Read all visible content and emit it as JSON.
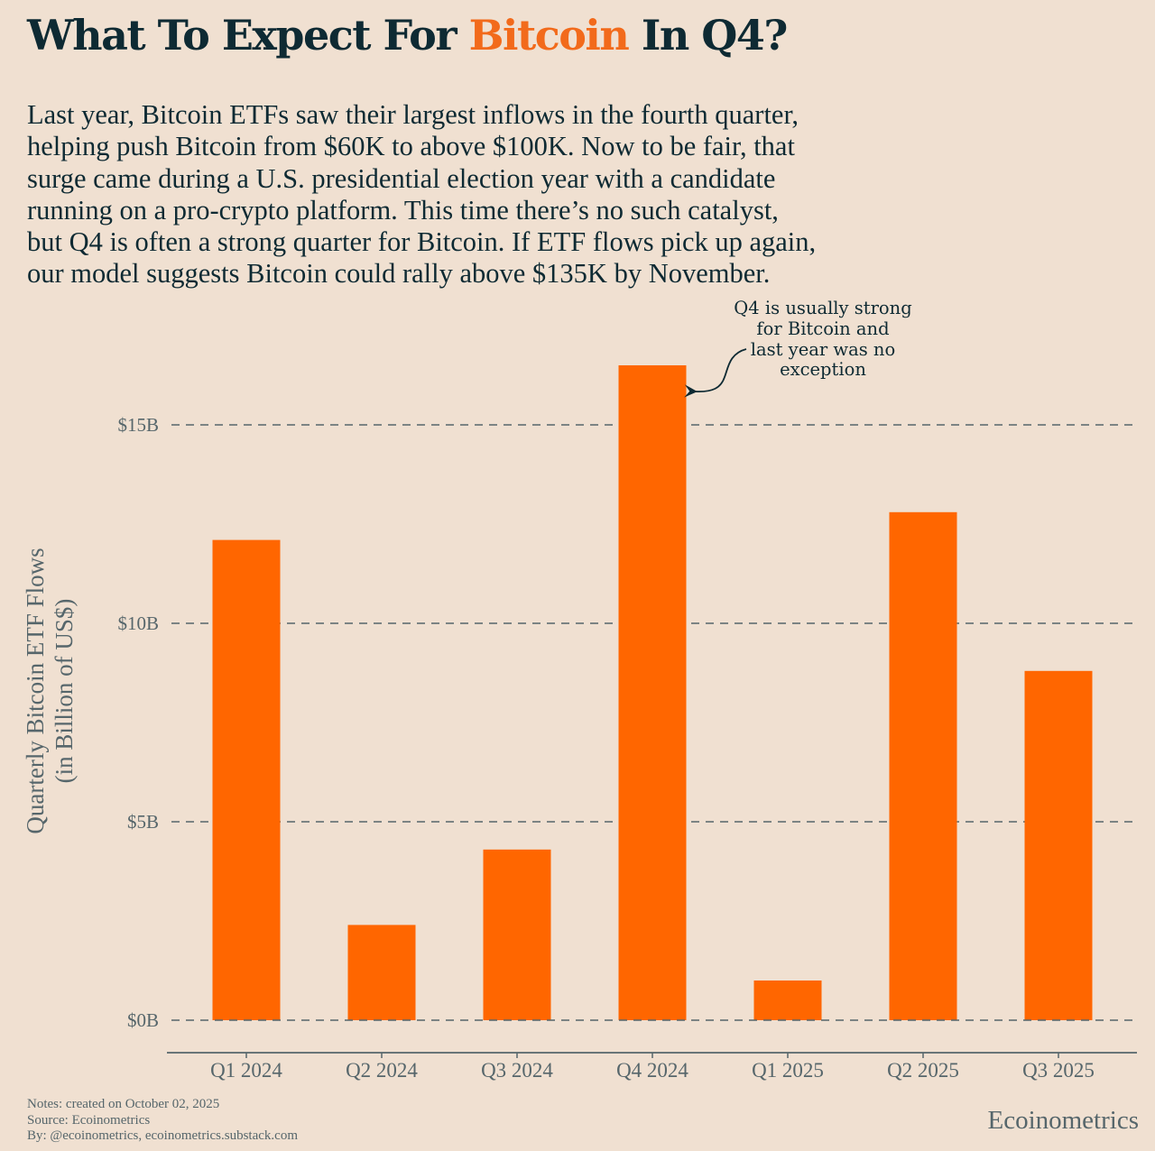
{
  "header": {
    "title_before": "What To Expect For ",
    "title_accent": "Bitcoin",
    "title_after": " In Q4?",
    "subtitle_lines": [
      "Last year, Bitcoin ETFs saw their largest inflows in the fourth quarter,",
      "helping push Bitcoin from $60K to above $100K. Now to be fair, that",
      "surge came during a U.S. presidential election year with a candidate",
      "running on a pro-crypto platform. This time there’s no such catalyst,",
      "but Q4 is often a strong quarter for Bitcoin. If ETF flows pick up again,",
      "our model suggests Bitcoin could rally above $135K by November."
    ]
  },
  "colors": {
    "background": "#f0e0d1",
    "bar": "#ff6600",
    "accent": "#f26a1b",
    "text_dark": "#0e2a33",
    "text_muted": "#56666b",
    "grid": "#56666b"
  },
  "chart_data": {
    "type": "bar",
    "title": "What To Expect For Bitcoin In Q4?",
    "categories": [
      "Q1 2024",
      "Q2 2024",
      "Q3 2024",
      "Q4 2024",
      "Q1 2025",
      "Q2 2025",
      "Q3 2025"
    ],
    "values": [
      12.1,
      2.4,
      4.3,
      16.5,
      1.0,
      12.8,
      8.8
    ],
    "units": "Billion US$",
    "xlabel": "",
    "ylabel_lines": [
      "Quarterly Bitcoin ETF Flows",
      "(in Billion of US$)"
    ],
    "ylim": [
      -0.8,
      17.5
    ],
    "yticks": [
      0,
      5,
      10,
      15
    ],
    "ytick_labels": [
      "$0B",
      "$5B",
      "$10B",
      "$15B"
    ],
    "grid": "horizontal dashed",
    "legend": "none",
    "annotation": {
      "target_category": "Q4 2024",
      "lines": [
        "Q4 is usually strong",
        "for Bitcoin and",
        "last year was no",
        "exception"
      ]
    }
  },
  "footer": {
    "notes": [
      "Notes: created on October 02, 2025",
      "Source: Ecoinometrics",
      "By: @ecoinometrics, ecoinometrics.substack.com"
    ],
    "brand": "Ecoinometrics"
  }
}
